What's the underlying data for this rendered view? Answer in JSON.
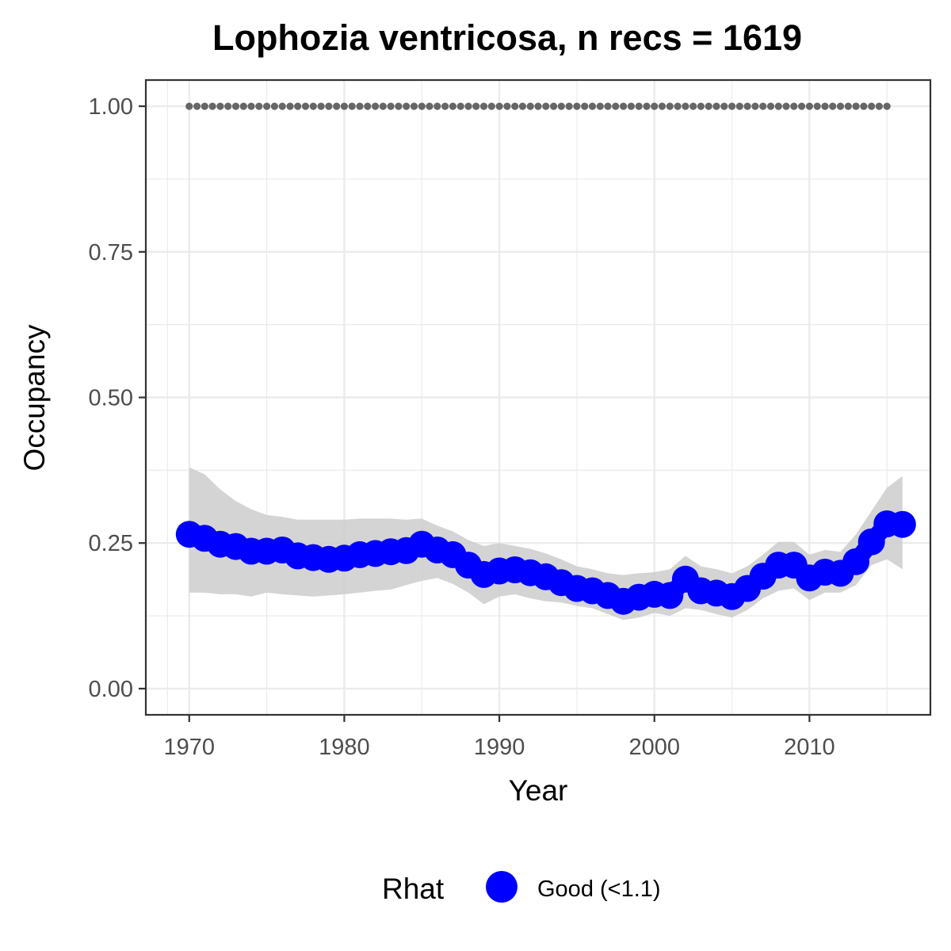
{
  "chart_data": {
    "type": "line",
    "title": "Lophozia ventricosa, n recs = 1619",
    "xlabel": "Year",
    "ylabel": "Occupancy",
    "xlim": [
      1967.2,
      2017.8
    ],
    "ylim": [
      -0.045,
      1.045
    ],
    "x_ticks": [
      1970,
      1980,
      1990,
      2000,
      2010
    ],
    "x_tick_labels": [
      "1970",
      "1980",
      "1990",
      "2000",
      "2010"
    ],
    "y_ticks": [
      0,
      0.25,
      0.5,
      0.75,
      1.0
    ],
    "y_tick_labels": [
      "0.00",
      "0.25",
      "0.50",
      "0.75",
      "1.00"
    ],
    "grid": true,
    "legend": {
      "title": "Rhat",
      "position": "bottom",
      "entries": [
        {
          "label": "Good (<1.1)",
          "color": "#0000ff"
        }
      ]
    },
    "colors": {
      "points": "#0000ff",
      "ribbon": "#cccccc",
      "reference": "#666666",
      "grid": "#ebebeb",
      "panel_border": "#333333"
    },
    "reference_line": {
      "style": "dotted",
      "y": 1.0,
      "x_start": 1970,
      "x_end": 2015
    },
    "series": [
      {
        "x": [
          1970,
          1971,
          1972,
          1973,
          1974,
          1975,
          1976,
          1977,
          1978,
          1979,
          1980,
          1981,
          1982,
          1983,
          1984,
          1985,
          1986,
          1987,
          1988,
          1989,
          1990,
          1991,
          1992,
          1993,
          1994,
          1995,
          1996,
          1997,
          1998,
          1999,
          2000,
          2001,
          2002,
          2003,
          2004,
          2005,
          2006,
          2007,
          2008,
          2009,
          2010,
          2011,
          2012,
          2013,
          2014,
          2015,
          2016
        ],
        "y": [
          0.265,
          0.258,
          0.248,
          0.244,
          0.236,
          0.236,
          0.238,
          0.228,
          0.225,
          0.222,
          0.224,
          0.23,
          0.232,
          0.235,
          0.237,
          0.248,
          0.238,
          0.23,
          0.212,
          0.196,
          0.202,
          0.204,
          0.199,
          0.192,
          0.182,
          0.172,
          0.168,
          0.16,
          0.15,
          0.157,
          0.162,
          0.16,
          0.188,
          0.168,
          0.164,
          0.158,
          0.172,
          0.193,
          0.212,
          0.212,
          0.19,
          0.2,
          0.198,
          0.218,
          0.252,
          0.283,
          0.282
        ],
        "lower": [
          0.165,
          0.165,
          0.162,
          0.162,
          0.158,
          0.165,
          0.162,
          0.16,
          0.158,
          0.16,
          0.162,
          0.165,
          0.168,
          0.17,
          0.178,
          0.185,
          0.19,
          0.18,
          0.165,
          0.145,
          0.158,
          0.162,
          0.155,
          0.15,
          0.148,
          0.142,
          0.138,
          0.128,
          0.118,
          0.122,
          0.13,
          0.125,
          0.138,
          0.135,
          0.128,
          0.122,
          0.135,
          0.155,
          0.168,
          0.172,
          0.152,
          0.165,
          0.165,
          0.178,
          0.212,
          0.222,
          0.205
        ],
        "upper": [
          0.38,
          0.368,
          0.342,
          0.322,
          0.308,
          0.298,
          0.295,
          0.29,
          0.29,
          0.29,
          0.29,
          0.292,
          0.292,
          0.292,
          0.29,
          0.292,
          0.28,
          0.27,
          0.255,
          0.245,
          0.25,
          0.245,
          0.24,
          0.232,
          0.222,
          0.21,
          0.205,
          0.198,
          0.195,
          0.198,
          0.2,
          0.205,
          0.228,
          0.21,
          0.205,
          0.198,
          0.21,
          0.23,
          0.252,
          0.252,
          0.23,
          0.238,
          0.235,
          0.265,
          0.305,
          0.345,
          0.365
        ]
      }
    ]
  }
}
